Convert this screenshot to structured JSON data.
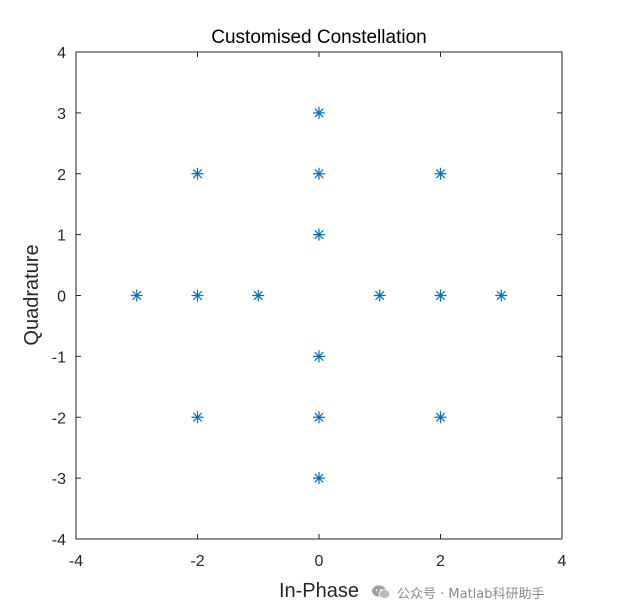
{
  "chart_data": {
    "type": "scatter",
    "title": "Customised Constellation",
    "xlabel": "In-Phase",
    "ylabel": "Quadrature",
    "xlim": [
      -4,
      4
    ],
    "ylim": [
      -4,
      4
    ],
    "xticks": [
      "-4",
      "-2",
      "0",
      "2",
      "4"
    ],
    "yticks": [
      "4",
      "3",
      "2",
      "1",
      "0",
      "-1",
      "-2",
      "-3",
      "-4"
    ],
    "marker": "asterisk",
    "marker_color": "#0072BD",
    "grid": false,
    "points": [
      {
        "x": 0,
        "y": 3
      },
      {
        "x": -2,
        "y": 2
      },
      {
        "x": 0,
        "y": 2
      },
      {
        "x": 2,
        "y": 2
      },
      {
        "x": 0,
        "y": 1
      },
      {
        "x": -3,
        "y": 0
      },
      {
        "x": -2,
        "y": 0
      },
      {
        "x": -1,
        "y": 0
      },
      {
        "x": 1,
        "y": 0
      },
      {
        "x": 2,
        "y": 0
      },
      {
        "x": 3,
        "y": 0
      },
      {
        "x": 0,
        "y": -1
      },
      {
        "x": -2,
        "y": -2
      },
      {
        "x": 0,
        "y": -2
      },
      {
        "x": 2,
        "y": -2
      },
      {
        "x": 0,
        "y": -3
      }
    ]
  },
  "watermark": {
    "icon": "wechat-icon",
    "text": "公众号 · Matlab科研助手"
  }
}
